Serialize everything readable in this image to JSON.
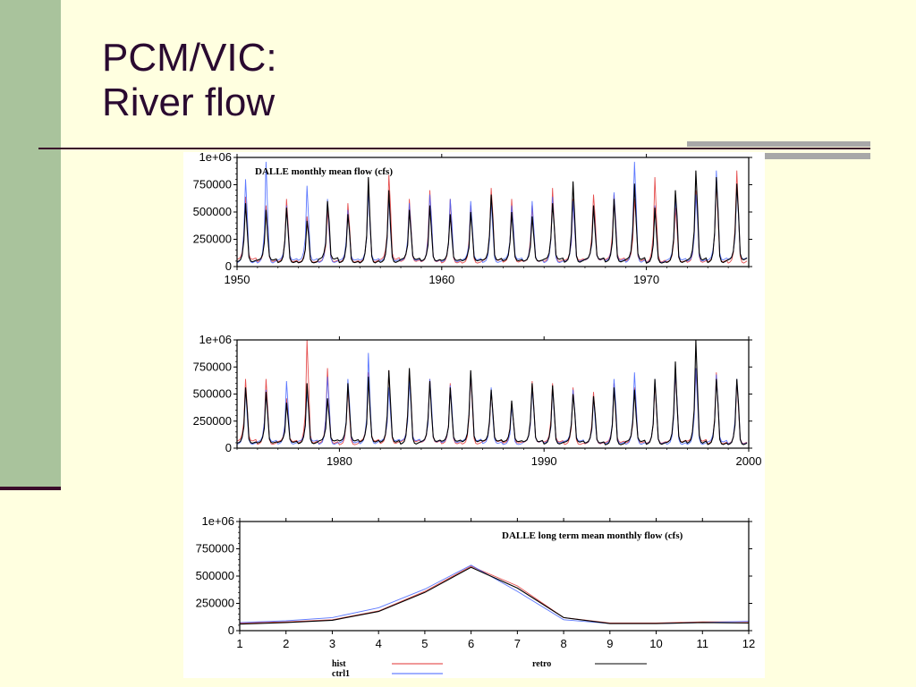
{
  "slide": {
    "title_line1": "PCM/VIC:",
    "title_line2": "River flow"
  },
  "colors": {
    "hist": "#e03030",
    "ctrl1": "#4060ff",
    "retro": "#000000"
  },
  "chart_data": [
    {
      "type": "line",
      "title": "DALLE monthly mean flow (cfs)",
      "xlim": [
        1950,
        1975
      ],
      "ylim": [
        0,
        1000000
      ],
      "xticks": [
        "1950",
        "1960",
        "1970"
      ],
      "xtick_values": [
        1950,
        1960,
        1970
      ],
      "yticks": [
        "0",
        "250000",
        "500000",
        "750000",
        "1e+06"
      ],
      "ytick_values": [
        0,
        250000,
        500000,
        750000,
        1000000
      ],
      "series": [
        {
          "name": "hist",
          "peaks": [
            640000,
            560000,
            620000,
            460000,
            520000,
            580000,
            800000,
            840000,
            620000,
            700000,
            620000,
            560000,
            720000,
            620000,
            560000,
            720000,
            620000,
            660000,
            660000,
            620000,
            820000,
            540000,
            700000,
            800000,
            880000
          ]
        },
        {
          "name": "ctrl1",
          "peaks": [
            800000,
            960000,
            560000,
            740000,
            620000,
            520000,
            700000,
            640000,
            580000,
            660000,
            620000,
            600000,
            600000,
            560000,
            600000,
            640000,
            600000,
            560000,
            680000,
            960000,
            560000,
            620000,
            660000,
            880000,
            740000
          ]
        },
        {
          "name": "retro",
          "peaks": [
            580000,
            520000,
            540000,
            420000,
            600000,
            480000,
            820000,
            700000,
            520000,
            560000,
            480000,
            500000,
            660000,
            500000,
            460000,
            580000,
            780000,
            560000,
            620000,
            760000,
            540000,
            700000,
            880000,
            820000,
            760000
          ]
        }
      ]
    },
    {
      "type": "line",
      "title": "",
      "xlim": [
        1975,
        2000
      ],
      "ylim": [
        0,
        1000000
      ],
      "xticks": [
        "1980",
        "1990",
        "2000"
      ],
      "xtick_values": [
        1980,
        1990,
        2000
      ],
      "yticks": [
        "0",
        "250000",
        "500000",
        "750000",
        "1e+06"
      ],
      "ytick_values": [
        0,
        250000,
        500000,
        750000,
        1000000
      ],
      "series": [
        {
          "name": "hist",
          "peaks": [
            640000,
            640000,
            460000,
            1000000,
            740000,
            560000,
            700000,
            720000,
            720000,
            640000,
            600000,
            680000,
            520000,
            420000,
            620000,
            600000,
            560000,
            520000,
            600000,
            560000,
            600000,
            680000,
            740000,
            700000,
            620000
          ]
        },
        {
          "name": "ctrl1",
          "peaks": [
            560000,
            540000,
            620000,
            520000,
            660000,
            640000,
            880000,
            560000,
            620000,
            640000,
            580000,
            700000,
            560000,
            380000,
            560000,
            560000,
            540000,
            480000,
            640000,
            700000,
            640000,
            700000,
            740000,
            680000,
            640000
          ]
        },
        {
          "name": "retro",
          "peaks": [
            560000,
            520000,
            420000,
            600000,
            460000,
            600000,
            660000,
            720000,
            740000,
            620000,
            560000,
            720000,
            540000,
            440000,
            600000,
            580000,
            500000,
            480000,
            560000,
            540000,
            640000,
            800000,
            1000000,
            640000,
            640000
          ]
        }
      ]
    },
    {
      "type": "line",
      "title": "DALLE long term mean monthly flow (cfs)",
      "xlim": [
        1,
        12
      ],
      "ylim": [
        0,
        1000000
      ],
      "xticks": [
        "1",
        "2",
        "3",
        "4",
        "5",
        "6",
        "7",
        "8",
        "9",
        "10",
        "11",
        "12"
      ],
      "xtick_values": [
        1,
        2,
        3,
        4,
        5,
        6,
        7,
        8,
        9,
        10,
        11,
        12
      ],
      "yticks": [
        "0",
        "250000",
        "500000",
        "750000",
        "1e+06"
      ],
      "ytick_values": [
        0,
        250000,
        500000,
        750000,
        1000000
      ],
      "x": [
        1,
        2,
        3,
        4,
        5,
        6,
        7,
        8,
        9,
        10,
        11,
        12
      ],
      "series": [
        {
          "name": "hist",
          "values": [
            70000,
            80000,
            100000,
            180000,
            360000,
            590000,
            410000,
            120000,
            70000,
            70000,
            80000,
            80000
          ]
        },
        {
          "name": "ctrl1",
          "values": [
            75000,
            90000,
            120000,
            210000,
            380000,
            600000,
            360000,
            100000,
            65000,
            65000,
            75000,
            85000
          ]
        },
        {
          "name": "retro",
          "values": [
            60000,
            75000,
            95000,
            175000,
            350000,
            580000,
            390000,
            120000,
            65000,
            65000,
            75000,
            70000
          ]
        }
      ],
      "legend": [
        {
          "label": "hist",
          "series": "hist"
        },
        {
          "label": "ctrl1",
          "series": "ctrl1"
        },
        {
          "label": "retro",
          "series": "retro"
        }
      ]
    }
  ]
}
